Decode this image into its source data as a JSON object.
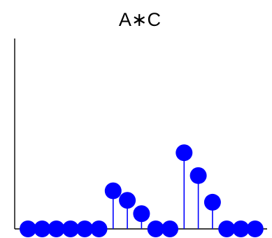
{
  "chart_data": {
    "type": "stem",
    "title": "A∗C",
    "xlabel": "",
    "ylabel": "",
    "x": [
      1,
      2,
      3,
      4,
      5,
      6,
      7,
      8,
      9,
      10,
      11,
      12,
      13,
      14,
      15,
      16,
      17
    ],
    "values": [
      0,
      0,
      0,
      0,
      0,
      0,
      2,
      1.5,
      0.8,
      0,
      0,
      4,
      2.8,
      1.4,
      0,
      0,
      0
    ],
    "ylim": [
      0,
      10
    ],
    "grid": false,
    "axis_color": "#000000",
    "series_color": "#0000ff"
  }
}
